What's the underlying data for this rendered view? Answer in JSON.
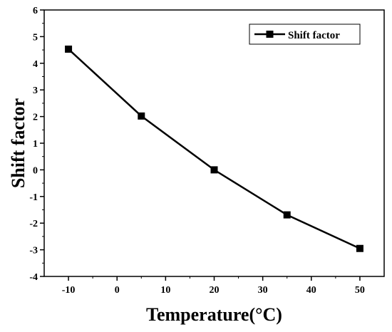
{
  "chart_data": {
    "type": "line",
    "xlabel": "Temperature(°C)",
    "ylabel": "Shift factor",
    "xlim": [
      -15,
      55
    ],
    "ylim": [
      -4,
      6
    ],
    "xticks": [
      -10,
      0,
      10,
      20,
      30,
      40,
      50
    ],
    "yticks": [
      -4,
      -3,
      -2,
      -1,
      0,
      1,
      2,
      3,
      4,
      5,
      6
    ],
    "xtick_labels": [
      "-10",
      "0",
      "10",
      "20",
      "30",
      "40",
      "50"
    ],
    "ytick_labels": [
      "-4",
      "-3",
      "-2",
      "-1",
      "0",
      "1",
      "2",
      "3",
      "4",
      "5",
      "6"
    ],
    "grid": false,
    "legend_position": "top-right",
    "series": [
      {
        "name": "Shift factor",
        "color": "#000000",
        "marker": "square",
        "x": [
          -10,
          5,
          20,
          35,
          50
        ],
        "y": [
          4.53,
          2.02,
          0.0,
          -1.69,
          -2.95
        ]
      }
    ]
  }
}
